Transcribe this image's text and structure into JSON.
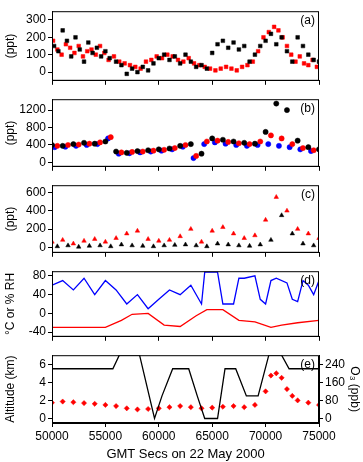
{
  "chart_data": [
    {
      "type": "scatter",
      "title": "(a)",
      "ylabel": "(ppt)",
      "xlim": [
        50000,
        75000
      ],
      "xticks": [
        50000,
        55000,
        60000,
        65000,
        70000,
        75000
      ],
      "ylim": [
        -50,
        350
      ],
      "yticks": [
        0,
        100,
        200,
        300
      ],
      "grid": false,
      "tick_labels": "y",
      "series": [
        {
          "color": "#000000",
          "marker": "square",
          "x": [
            50200,
            50600,
            51000,
            51400,
            51800,
            52200,
            52600,
            53000,
            53400,
            53800,
            54200,
            54600,
            55000,
            55400,
            56000,
            56500,
            57000,
            57500,
            58000,
            58500,
            59000,
            59500,
            60000,
            60500,
            61000,
            61500,
            62000,
            62500,
            63000,
            63500,
            64000,
            64500,
            65000,
            65500,
            66000,
            66500,
            67000,
            67500,
            68000,
            68500,
            69000,
            69500,
            70000,
            70500,
            71000,
            71500,
            72000,
            72500,
            73000,
            73500,
            74000,
            74500,
            75000
          ],
          "values": [
            150,
            120,
            240,
            180,
            90,
            200,
            130,
            60,
            170,
            110,
            140,
            90,
            120,
            80,
            60,
            40,
            -10,
            20,
            0,
            30,
            10,
            50,
            80,
            100,
            70,
            90,
            50,
            100,
            60,
            30,
            40,
            20,
            110,
            160,
            180,
            140,
            170,
            130,
            150,
            60,
            100,
            150,
            180,
            220,
            160,
            200,
            120,
            60,
            200,
            150,
            100,
            70,
            60
          ]
        },
        {
          "color": "#ff0000",
          "marker": "square",
          "x": [
            50100,
            50500,
            50900,
            51300,
            51700,
            52100,
            52500,
            52900,
            53300,
            53700,
            54100,
            54500,
            54900,
            55300,
            55800,
            56300,
            56800,
            57300,
            57800,
            58300,
            58800,
            59300,
            59800,
            60300,
            60800,
            61300,
            61800,
            62300,
            62800,
            63300,
            63800,
            64300,
            64800,
            65300,
            65800,
            66300,
            66800,
            67300,
            67800,
            68300,
            68800,
            69300,
            69800,
            70300,
            70800,
            71200,
            71600,
            72000,
            72400,
            72800,
            73200,
            73600,
            74000,
            74400,
            74800
          ],
          "values": [
            180,
            130,
            100,
            160,
            140,
            110,
            150,
            90,
            120,
            130,
            100,
            150,
            110,
            70,
            90,
            60,
            50,
            40,
            30,
            20,
            60,
            70,
            90,
            80,
            100,
            90,
            70,
            60,
            80,
            50,
            40,
            30,
            20,
            10,
            20,
            30,
            20,
            10,
            30,
            40,
            60,
            120,
            200,
            230,
            260,
            240,
            200,
            150,
            100,
            60,
            90,
            50,
            40,
            70,
            30
          ]
        }
      ]
    },
    {
      "type": "scatter",
      "title": "(b)",
      "ylabel": "(ppt)",
      "xlim": [
        50000,
        75000
      ],
      "xticks": [
        50000,
        55000,
        60000,
        65000,
        70000,
        75000
      ],
      "ylim": [
        -100,
        1450
      ],
      "yticks": [
        0,
        400,
        800,
        1200
      ],
      "grid": false,
      "tick_labels": "y",
      "series": [
        {
          "color": "#000000",
          "marker": "circle",
          "x": [
            50000,
            51000,
            52000,
            53000,
            54000,
            55000,
            56000,
            57000,
            58000,
            59000,
            60000,
            61000,
            62000,
            63000,
            64000,
            65000,
            66000,
            67000,
            68000,
            69000,
            70000,
            71000,
            72000,
            73000,
            74000,
            75000
          ],
          "values": [
            400,
            380,
            420,
            450,
            430,
            480,
            250,
            220,
            260,
            280,
            300,
            320,
            380,
            420,
            200,
            550,
            520,
            480,
            450,
            430,
            700,
            1350,
            1200,
            500,
            350,
            300
          ]
        },
        {
          "color": "#ff0000",
          "marker": "circle",
          "x": [
            50500,
            51500,
            52500,
            53500,
            54500,
            55500,
            56500,
            57500,
            58500,
            59500,
            60500,
            61500,
            62500,
            63500,
            64500,
            65500,
            66500,
            67500,
            68500,
            69500,
            70500,
            71500,
            72500,
            73500,
            74500
          ],
          "values": [
            380,
            400,
            410,
            430,
            460,
            580,
            230,
            240,
            250,
            270,
            290,
            330,
            400,
            150,
            480,
            500,
            470,
            440,
            420,
            480,
            620,
            550,
            420,
            330,
            280
          ]
        },
        {
          "color": "#0000ff",
          "marker": "circle",
          "x": [
            50250,
            51250,
            52250,
            53250,
            54250,
            55250,
            56250,
            57250,
            58250,
            59250,
            60250,
            61250,
            62250,
            63250,
            64250,
            65250,
            66250,
            67250,
            68250,
            69250,
            70250,
            71250,
            72250,
            73250,
            74250
          ],
          "values": [
            350,
            360,
            380,
            400,
            420,
            550,
            200,
            210,
            230,
            250,
            270,
            300,
            360,
            100,
            420,
            460,
            430,
            400,
            380,
            400,
            420,
            380,
            350,
            300,
            260
          ]
        }
      ]
    },
    {
      "type": "scatter",
      "title": "(c)",
      "ylabel": "(ppt)",
      "xlim": [
        50000,
        75000
      ],
      "xticks": [
        50000,
        55000,
        60000,
        65000,
        70000,
        75000
      ],
      "ylim": [
        -60,
        680
      ],
      "yticks": [
        0,
        200,
        400,
        600
      ],
      "grid": false,
      "tick_labels": "y",
      "series": [
        {
          "color": "#ff0000",
          "marker": "triangle",
          "x": [
            50000,
            51000,
            52000,
            53000,
            54000,
            55000,
            56000,
            57000,
            58000,
            59000,
            60000,
            61000,
            62000,
            63000,
            64000,
            65000,
            66000,
            67000,
            68000,
            69000,
            70000,
            71000,
            72000,
            73000,
            74000,
            75000
          ],
          "values": [
            60,
            80,
            40,
            70,
            90,
            60,
            100,
            150,
            180,
            90,
            70,
            80,
            120,
            200,
            60,
            180,
            220,
            150,
            100,
            130,
            300,
            550,
            400,
            200,
            150,
            100
          ]
        },
        {
          "color": "#000000",
          "marker": "triangle",
          "x": [
            50500,
            51500,
            52500,
            53500,
            54500,
            55500,
            56500,
            57500,
            58500,
            59500,
            60500,
            61500,
            62500,
            63500,
            64500,
            65500,
            66500,
            67500,
            68500,
            69500,
            70500,
            71500,
            72500,
            73500,
            74500
          ],
          "values": [
            10,
            20,
            5,
            15,
            20,
            10,
            30,
            20,
            15,
            10,
            20,
            25,
            30,
            20,
            10,
            40,
            30,
            20,
            15,
            30,
            80,
            350,
            150,
            40,
            20
          ]
        }
      ]
    },
    {
      "type": "line",
      "title": "(d)",
      "ylabel": "°C or % RH",
      "xlim": [
        50000,
        75000
      ],
      "xticks": [
        50000,
        55000,
        60000,
        65000,
        70000,
        75000
      ],
      "ylim": [
        -50,
        90
      ],
      "yticks": [
        -40,
        0,
        40,
        80
      ],
      "grid": false,
      "tick_labels": "y",
      "series": [
        {
          "color": "#0000ff",
          "line_style": "solid",
          "x": [
            50000,
            51000,
            52000,
            53000,
            54000,
            55000,
            56000,
            57000,
            58000,
            59000,
            60000,
            61000,
            62000,
            63000,
            64000,
            64300,
            65500,
            66000,
            67000,
            67500,
            68000,
            69000,
            69500,
            70000,
            70500,
            71000,
            72000,
            72500,
            73000,
            73500,
            74000,
            74500,
            75000
          ],
          "values": [
            60,
            70,
            50,
            75,
            40,
            70,
            50,
            20,
            40,
            10,
            30,
            50,
            40,
            60,
            20,
            88,
            88,
            20,
            20,
            75,
            75,
            80,
            30,
            20,
            70,
            75,
            65,
            30,
            25,
            70,
            60,
            40,
            70
          ]
        },
        {
          "color": "#ff0000",
          "line_style": "solid",
          "x": [
            50000,
            55000,
            56500,
            57500,
            59000,
            60500,
            62000,
            63500,
            64500,
            66000,
            67500,
            69000,
            70500,
            71500,
            73000,
            75000
          ],
          "values": [
            -30,
            -30,
            -15,
            -2,
            0,
            -25,
            -28,
            -5,
            8,
            8,
            -15,
            -18,
            -30,
            -25,
            -20,
            -15
          ]
        }
      ]
    },
    {
      "type": "scatter",
      "title": "(e)",
      "xlabel": "GMT Secs on 22 May 2000",
      "ylabel": "Altitude (km)",
      "y2label": "O₃ (ppb)",
      "xlim": [
        50000,
        75000
      ],
      "xticks": [
        50000,
        55000,
        60000,
        65000,
        70000,
        75000
      ],
      "ylim": [
        -0.5,
        7
      ],
      "yticks": [
        0,
        2,
        4,
        6
      ],
      "y2lim": [
        -20,
        280
      ],
      "y2ticks": [
        0,
        80,
        160,
        240
      ],
      "grid": false,
      "series": [
        {
          "type": "line",
          "color": "#000000",
          "line_style": "solid",
          "x": [
            50000,
            55700,
            56300,
            58200,
            59600,
            60300,
            61300,
            62800,
            63600,
            64300,
            65500,
            66200,
            67200,
            68200,
            69300,
            70300,
            71500,
            72200,
            75000
          ],
          "values": [
            5.5,
            5.5,
            7,
            7,
            0,
            2.5,
            5.5,
            5.5,
            2.5,
            0,
            0,
            5.5,
            5.5,
            2.5,
            2.5,
            7,
            7,
            5.5,
            5.5
          ]
        },
        {
          "color": "#ff0000",
          "marker": "diamond",
          "axis": "y2",
          "x": [
            50000,
            51000,
            52000,
            53000,
            54000,
            55000,
            56000,
            57000,
            58000,
            59000,
            60000,
            61000,
            62000,
            63000,
            64000,
            65000,
            66000,
            67000,
            68000,
            69000,
            70000,
            70500,
            71000,
            71500,
            72000,
            72500,
            73000,
            74000,
            75000
          ],
          "values": [
            70,
            75,
            72,
            68,
            65,
            60,
            55,
            45,
            40,
            42,
            45,
            50,
            55,
            50,
            45,
            48,
            52,
            55,
            50,
            60,
            120,
            190,
            200,
            180,
            130,
            100,
            80,
            70,
            60
          ]
        }
      ]
    }
  ]
}
